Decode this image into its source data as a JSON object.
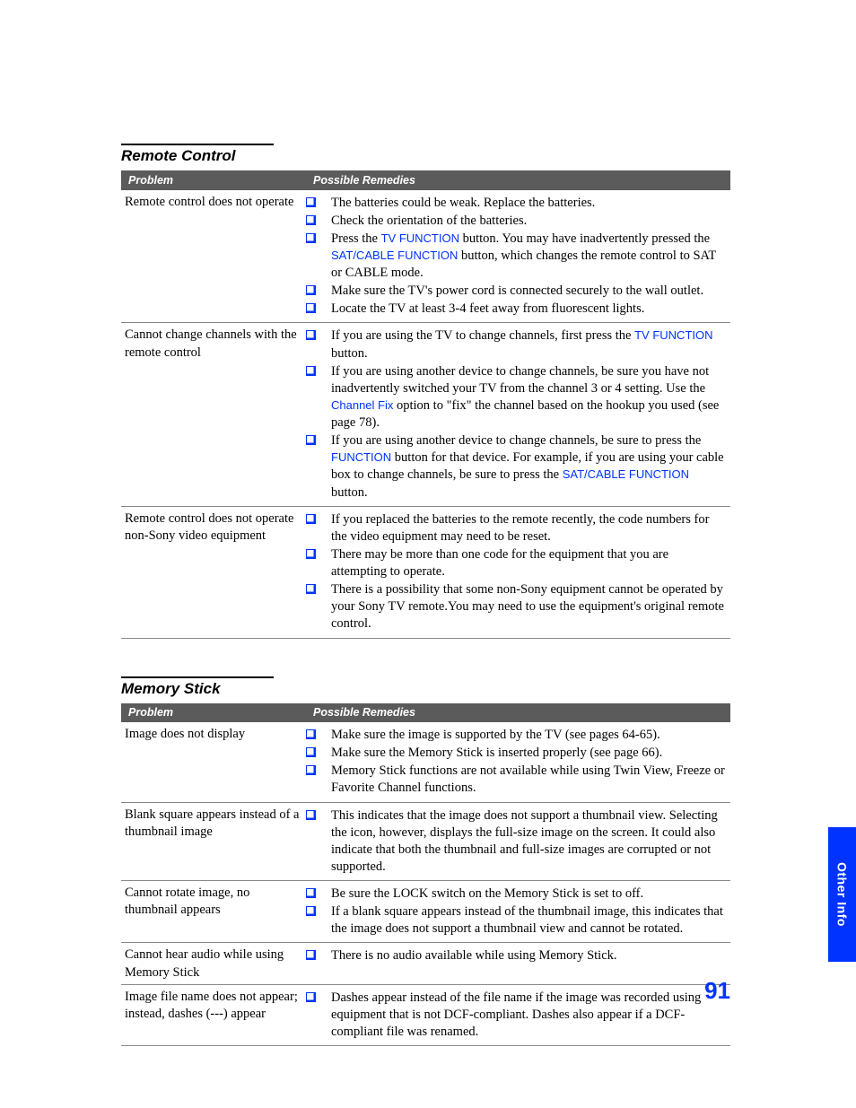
{
  "colors": {
    "link": "#0033ff",
    "headerBg": "#5b5b5b",
    "headerText": "#ffffff",
    "bodyText": "#000000",
    "tabBg": "#0033ff"
  },
  "sideTab": "Other Info",
  "pageNumber": "91",
  "sections": [
    {
      "title": "Remote Control",
      "headers": {
        "problem": "Problem",
        "remedies": "Possible Remedies"
      },
      "rows": [
        {
          "problem": "Remote control does not operate",
          "remedies": [
            [
              {
                "t": "The batteries could be weak. Replace the batteries."
              }
            ],
            [
              {
                "t": "Check the orientation of the batteries."
              }
            ],
            [
              {
                "t": "Press the "
              },
              {
                "t": "TV FUNCTION",
                "link": true
              },
              {
                "t": " button. You may have inadvertently pressed the "
              },
              {
                "t": "SAT/CABLE FUNCTION",
                "link": true
              },
              {
                "t": " button, which changes the remote control to SAT or CABLE mode."
              }
            ],
            [
              {
                "t": "Make sure the TV's power cord is connected securely to the wall outlet."
              }
            ],
            [
              {
                "t": "Locate the TV at least 3-4 feet away from fluorescent lights."
              }
            ]
          ]
        },
        {
          "problem": "Cannot change channels with the remote control",
          "remedies": [
            [
              {
                "t": "If you are using the TV to change channels, first press the "
              },
              {
                "t": "TV FUNCTION",
                "link": true
              },
              {
                "t": " button."
              }
            ],
            [
              {
                "t": "If you are using another device to change channels, be sure you have not inadvertently switched your TV from the channel 3 or 4 setting. Use the "
              },
              {
                "t": "Channel Fix",
                "link": true
              },
              {
                "t": " option to \"fix\" the channel based on the hookup you used (see page 78)."
              }
            ],
            [
              {
                "t": "If you are using another device to change channels, be sure to press the "
              },
              {
                "t": "FUNCTION",
                "link": true
              },
              {
                "t": " button for that device. For example, if you are using your cable box to change channels, be sure to press the "
              },
              {
                "t": "SAT/CABLE FUNCTION",
                "link": true
              },
              {
                "t": " button."
              }
            ]
          ]
        },
        {
          "problem": "Remote control does not operate non-Sony video equipment",
          "remedies": [
            [
              {
                "t": "If you replaced the batteries to the remote recently, the code numbers for the video equipment may need to be reset."
              }
            ],
            [
              {
                "t": "There may be more than one code for the equipment that you are attempting to operate."
              }
            ],
            [
              {
                "t": "There is a possibility that some non-Sony equipment cannot be operated by your Sony TV remote.You may need to use the equipment's original remote control."
              }
            ]
          ]
        }
      ]
    },
    {
      "title": "Memory Stick",
      "headers": {
        "problem": "Problem",
        "remedies": "Possible Remedies"
      },
      "rows": [
        {
          "problem": "Image does not display",
          "remedies": [
            [
              {
                "t": "Make sure the image is supported by the TV (see pages 64-65)."
              }
            ],
            [
              {
                "t": "Make sure the Memory Stick is inserted properly (see page 66)."
              }
            ],
            [
              {
                "t": "Memory Stick functions are not available while using Twin View, Freeze or Favorite Channel functions."
              }
            ]
          ]
        },
        {
          "problem": "Blank square appears instead of a thumbnail image",
          "remedies": [
            [
              {
                "t": "This indicates that the image does not support a thumbnail view. Selecting the icon, however, displays the full-size image on the screen. It could also indicate that both the thumbnail and full-size images are corrupted or not supported."
              }
            ]
          ]
        },
        {
          "problem": "Cannot rotate image, no thumbnail appears",
          "remedies": [
            [
              {
                "t": "Be sure the LOCK switch on the Memory Stick is set to off."
              }
            ],
            [
              {
                "t": "If a blank square appears instead of the thumbnail image, this indicates that the image does not support a thumbnail view and cannot be rotated."
              }
            ]
          ]
        },
        {
          "problem": "Cannot hear audio while using Memory Stick",
          "remedies": [
            [
              {
                "t": "There is no audio available while using Memory Stick."
              }
            ]
          ]
        },
        {
          "problem": "Image file name does not appear; instead, dashes (---) appear",
          "remedies": [
            [
              {
                "t": "Dashes appear instead of the file name if the image was recorded using equipment that is not DCF-compliant. Dashes also appear if a DCF-compliant file was renamed."
              }
            ]
          ]
        }
      ]
    }
  ]
}
